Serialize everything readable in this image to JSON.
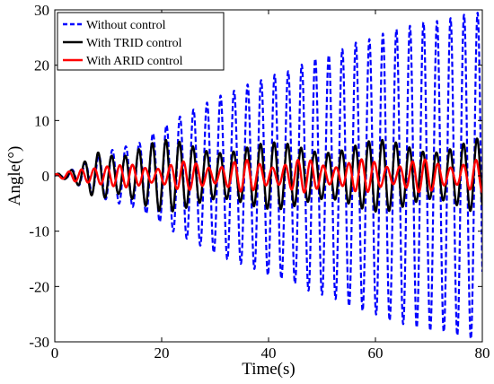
{
  "chart_data": {
    "type": "line",
    "xlabel": "Time(s)",
    "ylabel": "Angle(°)",
    "xlim": [
      0,
      80
    ],
    "ylim": [
      -30,
      30
    ],
    "xticks": [
      0,
      20,
      40,
      60,
      80
    ],
    "yticks": [
      -30,
      -20,
      -10,
      0,
      10,
      20,
      30
    ],
    "grid": false,
    "legend_position": "top-left",
    "series": [
      {
        "name": "Without control",
        "color": "#0000ff",
        "style": "dashed",
        "envelope": {
          "x": [
            0,
            2,
            4,
            6,
            8,
            10,
            12,
            14,
            16,
            18,
            20,
            22,
            24,
            26,
            28,
            30,
            32,
            34,
            36,
            38,
            40,
            42,
            44,
            46,
            48,
            50,
            52,
            54,
            56,
            58,
            60,
            62,
            64,
            66,
            68,
            70,
            72,
            74,
            76,
            78,
            80
          ],
          "amplitude": [
            0.3,
            0.6,
            1.5,
            2.5,
            3.5,
            4.5,
            5,
            5.5,
            6,
            7.5,
            8.5,
            10,
            11,
            12,
            13,
            14,
            15,
            15.5,
            16.5,
            17,
            18,
            18.5,
            19,
            20,
            21,
            21.5,
            22,
            23,
            24,
            24.5,
            25,
            26,
            26.5,
            27,
            27.5,
            28,
            28,
            28.5,
            29,
            29.5,
            29.5
          ]
        }
      },
      {
        "name": "With TRID control",
        "color": "#000000",
        "style": "solid",
        "envelope": {
          "x": [
            0,
            2,
            4,
            6,
            8,
            10,
            12,
            16,
            20,
            30,
            40,
            50,
            60,
            70,
            80
          ],
          "amplitude": [
            0.3,
            0.6,
            1.5,
            3.5,
            6,
            6,
            5,
            6,
            6.5,
            6.5,
            6,
            6.5,
            6.5,
            6.5,
            7
          ]
        }
      },
      {
        "name": "With ARID control",
        "color": "#ff0000",
        "style": "solid",
        "envelope": {
          "x": [
            0,
            2,
            4,
            6,
            8,
            10,
            12,
            20,
            40,
            60,
            80
          ],
          "amplitude": [
            0.3,
            0.6,
            1.2,
            2,
            3,
            2.5,
            2,
            2.5,
            3,
            3,
            3
          ]
        }
      }
    ]
  }
}
